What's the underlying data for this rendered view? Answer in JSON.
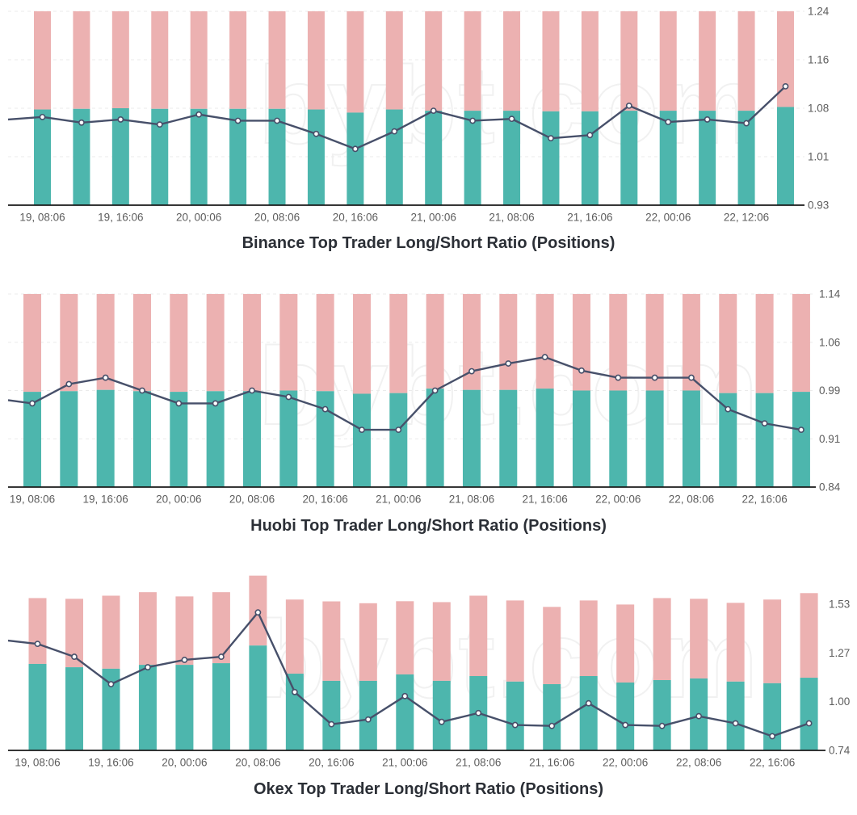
{
  "page": {
    "watermark": "bybt.com"
  },
  "colors": {
    "long_bar": "#4db6ad",
    "short_bar": "#ecb1b1",
    "line": "#47506a",
    "marker_fill": "#ffffff",
    "axis_line": "#1a1a1a",
    "tick_label": "#5d5d5d",
    "grid_line": "#ebebeb",
    "title": "#2b2f36"
  },
  "chart_data": [
    {
      "id": "binance",
      "type": "bar",
      "title": "Binance Top Trader Long/Short Ratio (Positions)",
      "legend_position": "none",
      "grid": true,
      "x_labels": [
        "19, 08:06",
        "19, 16:06",
        "20, 00:06",
        "20, 08:06",
        "20, 16:06",
        "21, 00:06",
        "21, 08:06",
        "21, 16:06",
        "22, 00:06",
        "22, 12:06"
      ],
      "y_axis": {
        "min": 0.93,
        "max": 1.24,
        "ticks": [
          {
            "value": 1.24,
            "label": "1.24"
          },
          {
            "value": 1.1625,
            "label": "1.16"
          },
          {
            "value": 1.085,
            "label": "1.08"
          },
          {
            "value": 1.0075,
            "label": "1.01"
          },
          {
            "value": 0.93,
            "label": "0.93"
          }
        ]
      },
      "series": [
        {
          "name": "long-bars",
          "values": [
            1.083,
            1.084,
            1.085,
            1.084,
            1.084,
            1.084,
            1.084,
            1.083,
            1.078,
            1.083,
            1.081,
            1.081,
            1.081,
            1.08,
            1.08,
            1.081,
            1.081,
            1.081,
            1.081,
            1.087
          ]
        },
        {
          "name": "short-bars-top",
          "values": null
        },
        {
          "name": "ratio-line",
          "edge_value": 1.067,
          "values": [
            1.071,
            1.062,
            1.067,
            1.059,
            1.075,
            1.065,
            1.065,
            1.044,
            1.02,
            1.048,
            1.081,
            1.065,
            1.068,
            1.037,
            1.042,
            1.089,
            1.063,
            1.067,
            1.061,
            1.12
          ]
        }
      ]
    },
    {
      "id": "huobi",
      "type": "bar",
      "title": "Huobi Top Trader Long/Short Ratio (Positions)",
      "legend_position": "none",
      "grid": true,
      "x_labels": [
        "19, 08:06",
        "19, 16:06",
        "20, 00:06",
        "20, 08:06",
        "20, 16:06",
        "21, 00:06",
        "21, 08:06",
        "21, 16:06",
        "22, 00:06",
        "22, 08:06",
        "22, 16:06"
      ],
      "y_axis": {
        "min": 0.84,
        "max": 1.14,
        "ticks": [
          {
            "value": 1.14,
            "label": "1.14"
          },
          {
            "value": 1.065,
            "label": "1.06"
          },
          {
            "value": 0.99,
            "label": "0.99"
          },
          {
            "value": 0.915,
            "label": "0.91"
          },
          {
            "value": 0.84,
            "label": "0.84"
          }
        ]
      },
      "series": [
        {
          "name": "long-bars",
          "values": [
            0.988,
            0.989,
            0.991,
            0.989,
            0.988,
            0.989,
            0.989,
            0.99,
            0.989,
            0.985,
            0.986,
            0.993,
            0.991,
            0.991,
            0.993,
            0.99,
            0.99,
            0.99,
            0.99,
            0.986,
            0.986,
            0.988
          ]
        },
        {
          "name": "short-bars-top",
          "values": null
        },
        {
          "name": "ratio-line",
          "edge_value": 0.975,
          "values": [
            0.97,
            1.0,
            1.01,
            0.99,
            0.97,
            0.97,
            0.99,
            0.98,
            0.961,
            0.929,
            0.929,
            0.99,
            1.02,
            1.032,
            1.042,
            1.021,
            1.01,
            1.01,
            1.01,
            0.961,
            0.939,
            0.929
          ]
        }
      ]
    },
    {
      "id": "okex",
      "type": "bar",
      "title": "Okex Top Trader Long/Short Ratio (Positions)",
      "legend_position": "none",
      "grid": false,
      "x_labels": [
        "19, 08:06",
        "19, 16:06",
        "20, 00:06",
        "20, 08:06",
        "20, 16:06",
        "21, 00:06",
        "21, 08:06",
        "21, 16:06",
        "22, 00:06",
        "22, 08:06",
        "22, 16:06"
      ],
      "y_axis": {
        "min": 0.74,
        "max": 1.8,
        "ticks": [
          {
            "value": 1.535,
            "label": "1.53"
          },
          {
            "value": 1.27,
            "label": "1.27"
          },
          {
            "value": 1.005,
            "label": "1.00"
          },
          {
            "value": 0.74,
            "label": "0.74"
          }
        ]
      },
      "series": [
        {
          "name": "long-bars",
          "values": [
            1.21,
            1.192,
            1.184,
            1.205,
            1.205,
            1.214,
            1.31,
            1.157,
            1.118,
            1.118,
            1.153,
            1.118,
            1.144,
            1.114,
            1.1,
            1.144,
            1.109,
            1.122,
            1.131,
            1.114,
            1.105,
            1.135
          ]
        },
        {
          "name": "short-bars-top",
          "values": [
            1.568,
            1.564,
            1.581,
            1.6,
            1.577,
            1.6,
            1.69,
            1.56,
            1.55,
            1.54,
            1.551,
            1.546,
            1.581,
            1.555,
            1.52,
            1.555,
            1.533,
            1.568,
            1.564,
            1.542,
            1.56,
            1.595
          ]
        },
        {
          "name": "ratio-line",
          "edge_value": 1.337,
          "values": [
            1.319,
            1.249,
            1.1,
            1.192,
            1.232,
            1.249,
            1.49,
            1.057,
            0.882,
            0.908,
            1.035,
            0.895,
            0.943,
            0.878,
            0.873,
            0.996,
            0.878,
            0.873,
            0.926,
            0.887,
            0.817,
            0.887
          ]
        }
      ]
    }
  ]
}
